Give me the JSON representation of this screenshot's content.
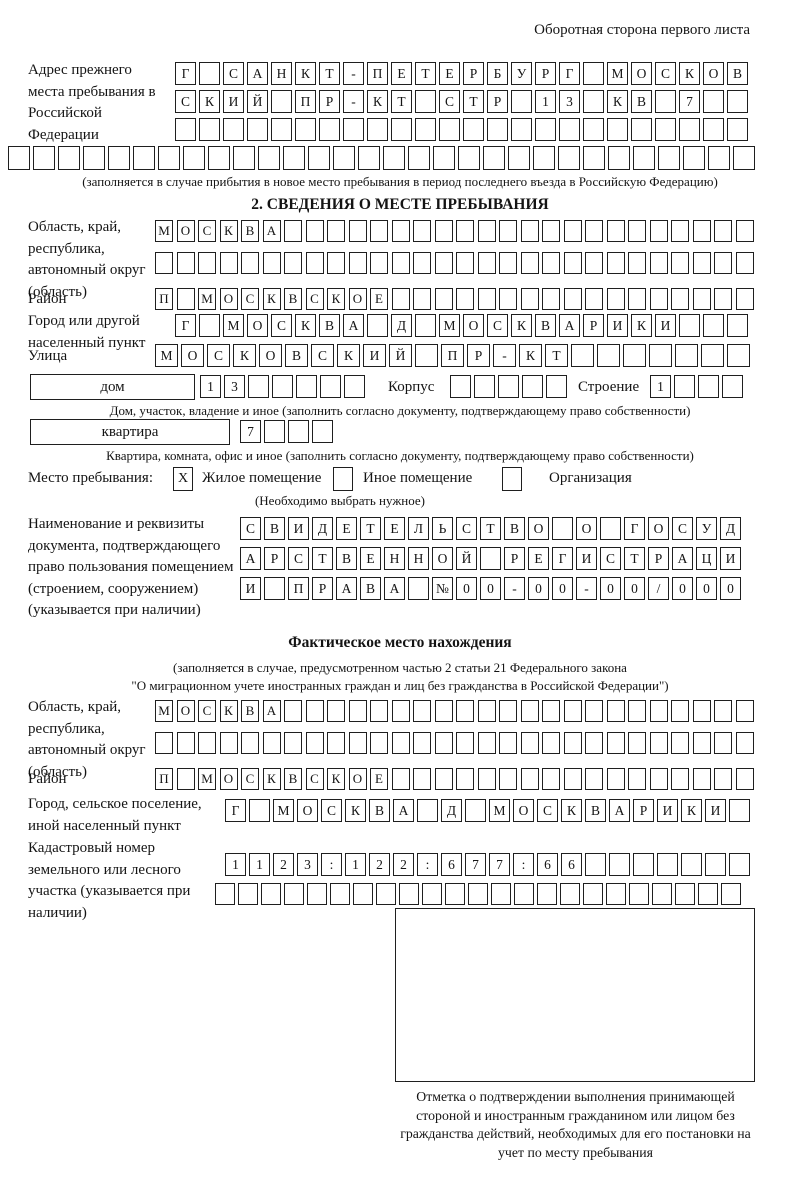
{
  "page": {
    "side_note": "Оборотная сторона первого листа"
  },
  "colors": {
    "ink": "#1f1f1f",
    "paper": "#ffffff"
  },
  "prev_address": {
    "label": "Адрес прежнего места пребывания в Российской Федерации",
    "row1": {
      "text": "Г САНКТ-ПЕТЕРБУРГ МОСКОВ",
      "len": 24
    },
    "row2": {
      "text": "СКИЙ ПР-КТ СТР 13 КВ 7",
      "len": 24
    },
    "row3": {
      "text": "",
      "len": 24
    },
    "row4": {
      "text": "",
      "len": 30
    },
    "note": "(заполняется в случае прибытия в новое место пребывания в период последнего въезда в Российскую Федерацию)"
  },
  "section2": {
    "title": "2. СВЕДЕНИЯ О МЕСТЕ ПРЕБЫВАНИЯ",
    "region_label": "Область, край, республика, автономный округ (область)",
    "region_row1": {
      "text": "МОСКВА",
      "len": 28
    },
    "region_row2": {
      "text": "",
      "len": 28
    },
    "district_label": "Район",
    "district_row": {
      "text": "П МОСКВСКОЕ",
      "len": 28
    },
    "city_label": "Город или другой населенный пункт",
    "city_row": {
      "text": "Г МОСКВА Д МОСКВАРИКИ",
      "len": 24
    },
    "street_label": "Улица",
    "street_row": {
      "text": "МОСКОВСКИЙ ПР-КТ",
      "len": 23
    },
    "house_label": "дом",
    "house_row": {
      "text": "13",
      "len": 7
    },
    "korpus_label": "Корпус",
    "korpus_row": {
      "text": "",
      "len": 5
    },
    "stroenie_label": "Строение",
    "stroenie_row": {
      "text": "1",
      "len": 4
    },
    "house_note": "Дом, участок, владение и иное (заполнить согласно документу, подтверждающему право собственности)",
    "apartment_label": "квартира",
    "apartment_row": {
      "text": "7",
      "len": 4
    },
    "apartment_note": "Квартира, комната, офис и иное (заполнить согласно документу, подтверждающему право собственности)",
    "stay_label": "Место пребывания:",
    "stay_options": [
      {
        "label": "Жилое помещение",
        "mark": "X"
      },
      {
        "label": "Иное помещение",
        "mark": ""
      },
      {
        "label": "Организация",
        "mark": ""
      }
    ],
    "stay_note": "(Необходимо выбрать нужное)",
    "doc_label": "Наименование и реквизиты документа, подтверждающего право пользования помещением (строением, сооружением) (указывается при наличии)",
    "doc_row1": {
      "text": "СВИДЕТЕЛЬСТВО О ГОСУД",
      "len": 21
    },
    "doc_row2": {
      "text": "АРСТВЕННОЙ РЕГИСТРАЦИ",
      "len": 21
    },
    "doc_row3": {
      "text": "И ПРАВА №00-00-00/000",
      "len": 21
    }
  },
  "actual": {
    "title": "Фактическое место нахождения",
    "note1": "(заполняется в случае, предусмотренном частью 2 статьи 21 Федерального закона",
    "note2": "\"О миграционном учете иностранных граждан и лиц без гражданства в Российской Федерации\")",
    "region_label": "Область, край, республика, автономный округ (область)",
    "region_row1": {
      "text": "МОСКВА",
      "len": 28
    },
    "region_row2": {
      "text": "",
      "len": 28
    },
    "district_label": "Район",
    "district_row": {
      "text": "П МОСКВСКОЕ",
      "len": 28
    },
    "city_label": "Город, сельское поселение, иной населенный пункт",
    "city_row": {
      "text": "Г МОСКВА Д МОСКВАРИКИ",
      "len": 22
    },
    "cadastral_label": "Кадастровый номер земельного или лесного участка (указывается при наличии)",
    "cadastral_row1": {
      "text": "1123:122:677:66",
      "len": 22
    },
    "cadastral_row2": {
      "text": "",
      "len": 23
    },
    "stamp_note": "Отметка о подтверждении выполнения принимающей стороной и иностранным гражданином или лицом без гражданства действий, необходимых для его постановки на учет по месту пребывания"
  }
}
